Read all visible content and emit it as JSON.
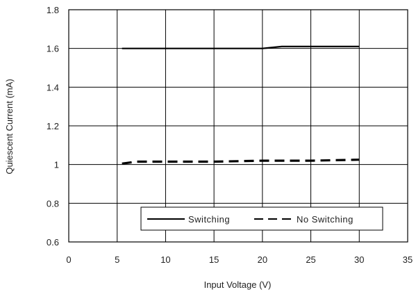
{
  "chart_data": {
    "type": "line",
    "xlabel": "Input Voltage (V)",
    "ylabel": "Quiescent Current (mA)",
    "xlim": [
      0,
      35
    ],
    "ylim": [
      0.6,
      1.8
    ],
    "x_ticks": [
      "0",
      "5",
      "10",
      "15",
      "20",
      "25",
      "30",
      "35"
    ],
    "y_ticks": [
      "0.6",
      "0.8",
      "1",
      "1.2",
      "1.4",
      "1.6",
      "1.8"
    ],
    "grid": true,
    "legend_position": "bottom-right",
    "series": [
      {
        "name": "Switching",
        "style": "solid",
        "color": "#000000",
        "x": [
          5.5,
          10,
          15,
          20,
          22,
          25,
          30
        ],
        "y": [
          1.6,
          1.6,
          1.6,
          1.6,
          1.61,
          1.61,
          1.61
        ]
      },
      {
        "name": "No Switching",
        "style": "dashed",
        "color": "#000000",
        "x": [
          5.5,
          7,
          10,
          15,
          20,
          25,
          30
        ],
        "y": [
          1.005,
          1.015,
          1.015,
          1.015,
          1.02,
          1.02,
          1.025
        ]
      }
    ]
  }
}
